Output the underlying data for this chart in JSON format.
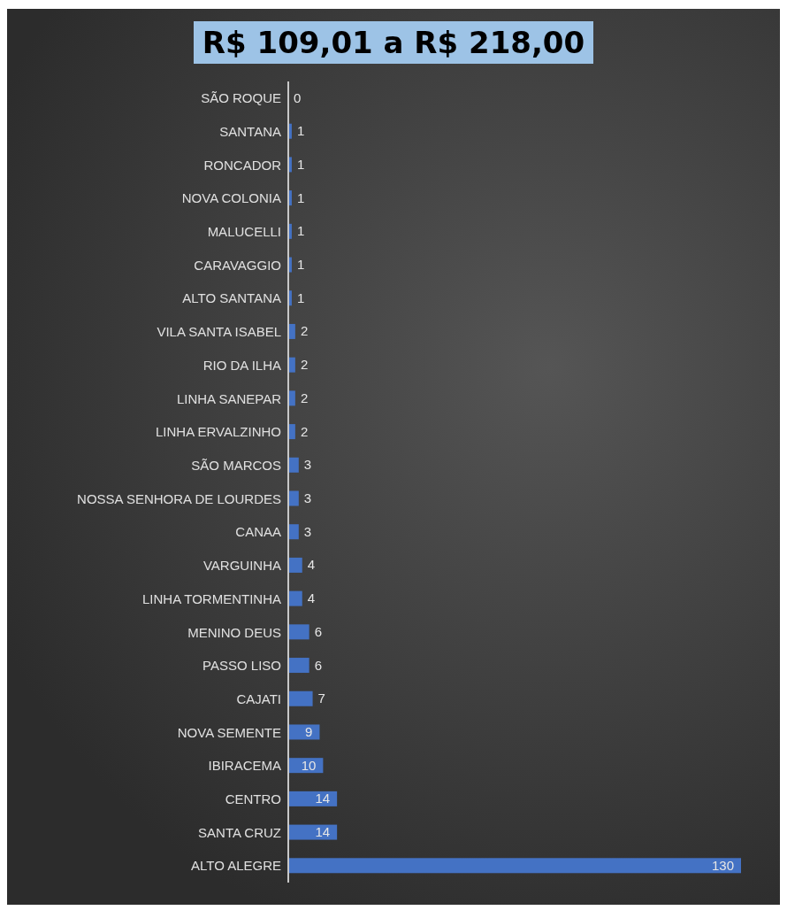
{
  "chart_data": {
    "type": "bar",
    "orientation": "horizontal",
    "title": "R$ 109,01 a R$ 218,00",
    "data_labels": true,
    "color": "#4472c4",
    "categories": [
      "SÃO ROQUE",
      "SANTANA",
      "RONCADOR",
      "NOVA COLONIA",
      "MALUCELLI",
      "CARAVAGGIO",
      "ALTO SANTANA",
      "VILA SANTA ISABEL",
      "RIO DA ILHA",
      "LINHA SANEPAR",
      "LINHA ERVALZINHO",
      "SÃO MARCOS",
      "NOSSA SENHORA DE LOURDES",
      "CANAA",
      "VARGUINHA",
      "LINHA TORMENTINHA",
      "MENINO DEUS",
      "PASSO LISO",
      "CAJATI",
      "NOVA SEMENTE",
      "IBIRACEMA",
      "CENTRO",
      "SANTA CRUZ",
      "ALTO ALEGRE"
    ],
    "values": [
      0,
      1,
      1,
      1,
      1,
      1,
      1,
      2,
      2,
      2,
      2,
      3,
      3,
      3,
      4,
      4,
      6,
      6,
      7,
      9,
      10,
      14,
      14,
      130
    ]
  }
}
